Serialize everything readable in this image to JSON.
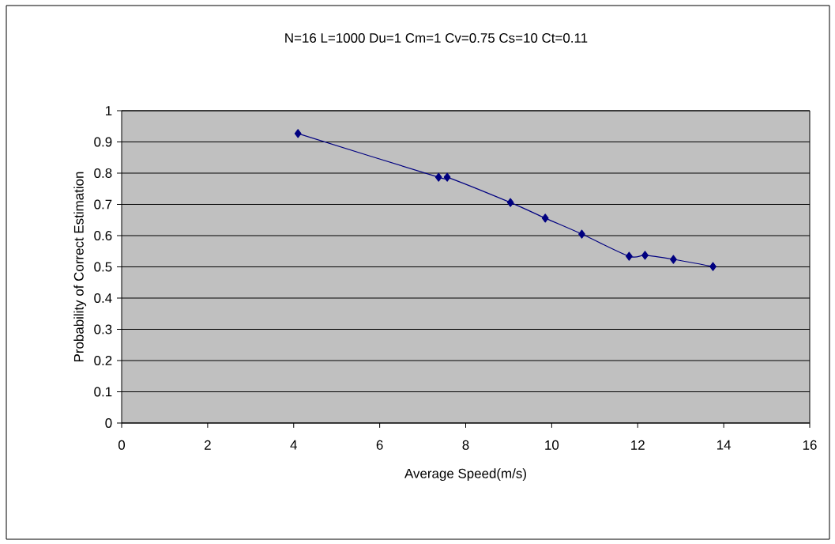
{
  "chart_data": {
    "type": "line",
    "title": "N=16 L=1000 Du=1 Cm=1 Cv=0.75 Cs=10 Ct=0.11",
    "xlabel": "Average Speed(m/s)",
    "ylabel": "Probability of Correct Estimation",
    "x": [
      4.1,
      7.37,
      7.57,
      9.04,
      9.85,
      10.7,
      11.8,
      12.17,
      12.83,
      13.75
    ],
    "series": [
      {
        "color": "#000080",
        "values": [
          0.927,
          0.787,
          0.787,
          0.706,
          0.656,
          0.605,
          0.534,
          0.537,
          0.524,
          0.501
        ]
      }
    ],
    "xlim": [
      0,
      16
    ],
    "ylim": [
      0,
      1
    ],
    "xticks": [
      0,
      2,
      4,
      6,
      8,
      10,
      12,
      14,
      16
    ],
    "yticks": [
      0,
      0.1,
      0.2,
      0.3,
      0.4,
      0.5,
      0.6,
      0.7,
      0.8,
      0.9,
      1
    ],
    "grid": "y",
    "marker": "diamond",
    "line_style": "solid"
  }
}
